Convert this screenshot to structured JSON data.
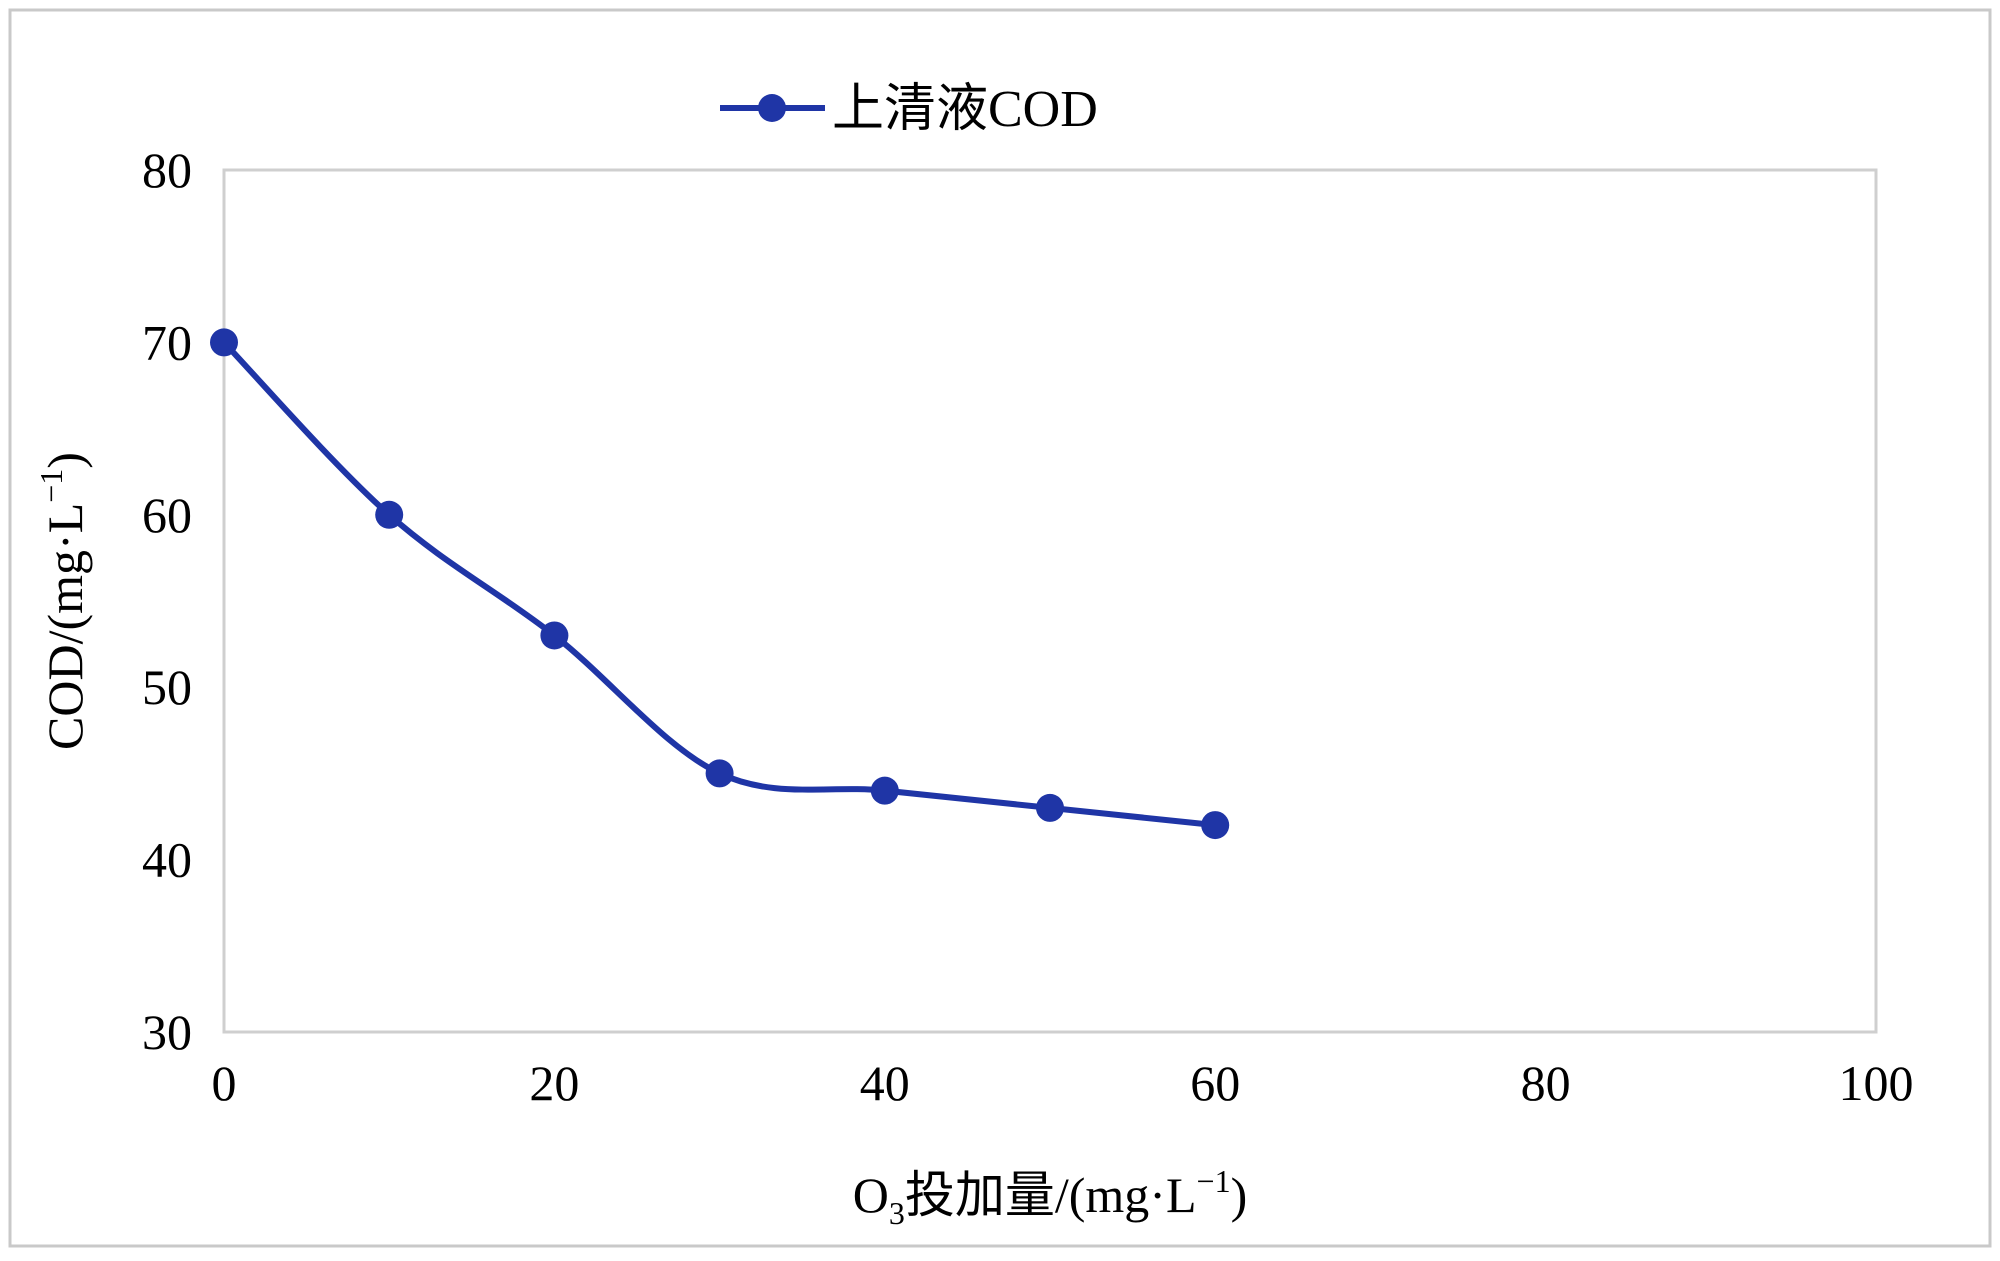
{
  "chart_data": {
    "type": "line",
    "title": "",
    "xlabel": {
      "prefix": "O",
      "subscript": "3",
      "main": "投加量/(mg·L",
      "superscript": "−1",
      "suffix": ")"
    },
    "ylabel": {
      "main": "COD/(mg·L",
      "superscript": "−1",
      "suffix": ")"
    },
    "xlim": [
      0,
      100
    ],
    "ylim": [
      30,
      80
    ],
    "xticks": [
      0,
      20,
      40,
      60,
      80,
      100
    ],
    "yticks": [
      30,
      40,
      50,
      60,
      70,
      80
    ],
    "x_tick_labels": [
      "0",
      "20",
      "40",
      "60",
      "80",
      "100"
    ],
    "y_tick_labels": [
      "30",
      "40",
      "50",
      "60",
      "70",
      "80"
    ],
    "grid": false,
    "legend_position": "top-center",
    "smooth": true,
    "series": [
      {
        "name": "上清液COD",
        "color": "#1f35a6",
        "marker": "circle",
        "x": [
          0,
          10,
          20,
          30,
          40,
          50,
          60
        ],
        "y": [
          70,
          60,
          53,
          45,
          44,
          43,
          42
        ]
      }
    ]
  }
}
